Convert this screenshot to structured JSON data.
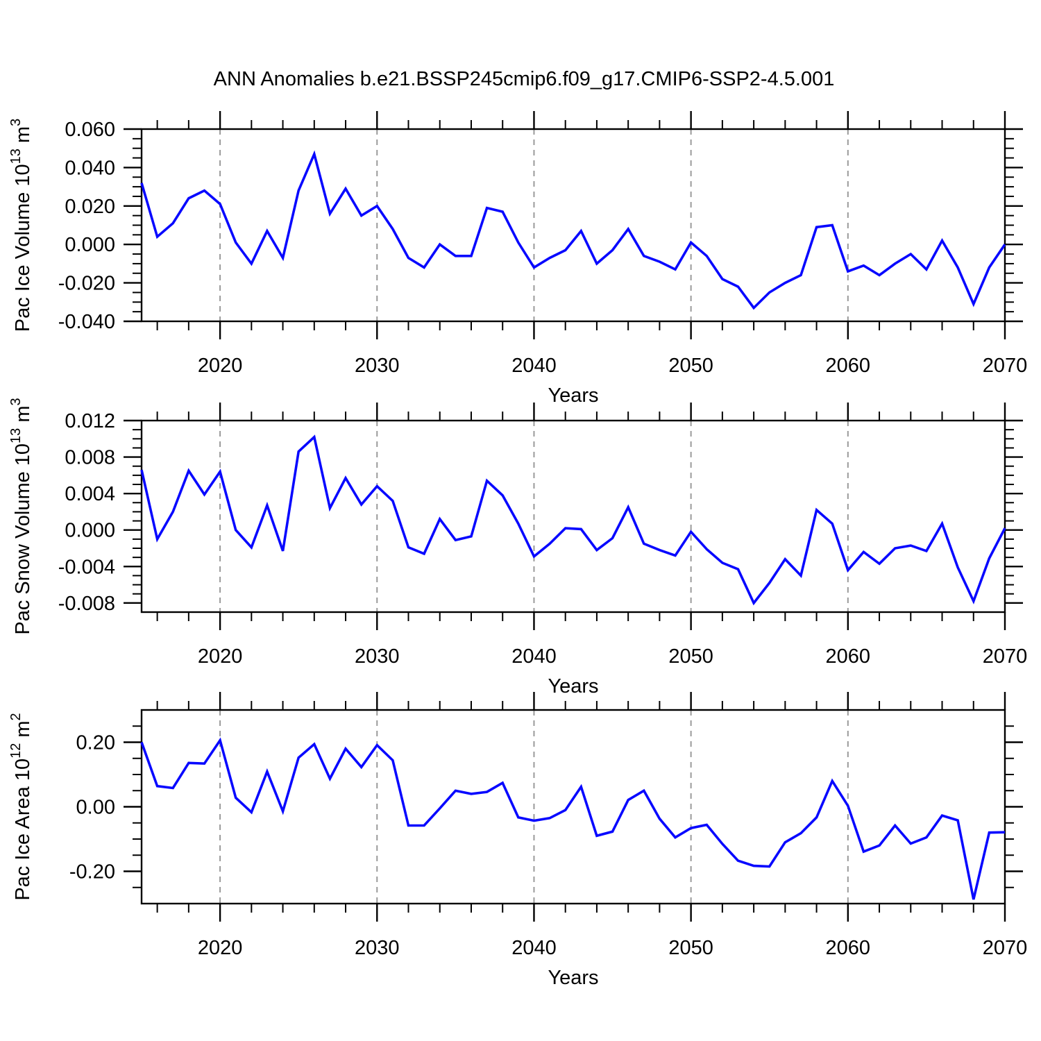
{
  "title": "ANN Anomalies b.e21.BSSP245cmip6.f09_g17.CMIP6-SSP2-4.5.001",
  "colors": {
    "line": "#0808ff",
    "axis": "#000000",
    "grid": "#9a9a9a",
    "text": "#000000",
    "background": "#ffffff"
  },
  "years": [
    2015,
    2016,
    2017,
    2018,
    2019,
    2020,
    2021,
    2022,
    2023,
    2024,
    2025,
    2026,
    2027,
    2028,
    2029,
    2030,
    2031,
    2032,
    2033,
    2034,
    2035,
    2036,
    2037,
    2038,
    2039,
    2040,
    2041,
    2042,
    2043,
    2044,
    2045,
    2046,
    2047,
    2048,
    2049,
    2050,
    2051,
    2052,
    2053,
    2054,
    2055,
    2056,
    2057,
    2058,
    2059,
    2060,
    2061,
    2062,
    2063,
    2064,
    2065,
    2066,
    2067,
    2068,
    2069,
    2070
  ],
  "x_axis": {
    "label": "Years",
    "range": [
      2015,
      2070
    ],
    "major_ticks": [
      2020,
      2030,
      2040,
      2050,
      2060,
      2070
    ],
    "major_tick_labels": [
      "2020",
      "2030",
      "2040",
      "2050",
      "2060",
      "2070"
    ],
    "minor_step": 2,
    "dashed_gridlines": [
      2020,
      2030,
      2040,
      2050,
      2060
    ]
  },
  "chart_data": [
    {
      "type": "line",
      "name": "pac-ice-volume",
      "ylabel": {
        "text": "Pac Ice Volume",
        "base": "10",
        "exp": "13",
        "unit": "m",
        "unit_exp": "3"
      },
      "ylim": [
        -0.04,
        0.06
      ],
      "yticks": [
        {
          "v": 0.06,
          "label": "0.060"
        },
        {
          "v": 0.04,
          "label": "0.040"
        },
        {
          "v": 0.02,
          "label": "0.020"
        },
        {
          "v": 0.0,
          "label": "0.000"
        },
        {
          "v": -0.02,
          "label": "-0.020"
        },
        {
          "v": -0.04,
          "label": "-0.040"
        }
      ],
      "y_minor_step": 0.005,
      "values": [
        0.032,
        0.004,
        0.011,
        0.024,
        0.028,
        0.021,
        0.001,
        -0.01,
        0.007,
        -0.007,
        0.028,
        0.047,
        0.016,
        0.029,
        0.015,
        0.02,
        0.008,
        -0.007,
        -0.012,
        0.0,
        -0.006,
        -0.006,
        0.019,
        0.017,
        0.001,
        -0.012,
        -0.007,
        -0.003,
        0.007,
        -0.01,
        -0.003,
        0.008,
        -0.006,
        -0.009,
        -0.013,
        0.001,
        -0.006,
        -0.018,
        -0.022,
        -0.033,
        -0.025,
        -0.02,
        -0.016,
        0.009,
        0.01,
        -0.014,
        -0.011,
        -0.016,
        -0.01,
        -0.005,
        -0.013,
        0.002,
        -0.012,
        -0.031,
        -0.012,
        0.0
      ]
    },
    {
      "type": "line",
      "name": "pac-snow-volume",
      "ylabel": {
        "text": "Pac Snow Volume",
        "base": "10",
        "exp": "13",
        "unit": "m",
        "unit_exp": "3"
      },
      "ylim": [
        -0.009,
        0.012
      ],
      "yticks": [
        {
          "v": 0.012,
          "label": "0.012"
        },
        {
          "v": 0.008,
          "label": "0.008"
        },
        {
          "v": 0.004,
          "label": "0.004"
        },
        {
          "v": 0.0,
          "label": "0.000"
        },
        {
          "v": -0.004,
          "label": "-0.004"
        },
        {
          "v": -0.008,
          "label": "-0.008"
        }
      ],
      "y_minor_step": 0.001,
      "values": [
        0.0066,
        -0.001,
        0.002,
        0.0065,
        0.0039,
        0.0064,
        0.0,
        -0.0019,
        0.0027,
        -0.0023,
        0.0086,
        0.0102,
        0.0024,
        0.0057,
        0.0028,
        0.0048,
        0.0032,
        -0.0019,
        -0.0026,
        0.0012,
        -0.0011,
        -0.0007,
        0.0054,
        0.0038,
        0.0007,
        -0.0029,
        -0.0015,
        0.0002,
        0.0001,
        -0.0022,
        -0.0009,
        0.0025,
        -0.0015,
        -0.0022,
        -0.0028,
        -0.0002,
        -0.0021,
        -0.0036,
        -0.0043,
        -0.008,
        -0.0058,
        -0.0032,
        -0.005,
        0.0022,
        0.0007,
        -0.0044,
        -0.0024,
        -0.0037,
        -0.002,
        -0.0017,
        -0.0023,
        0.0007,
        -0.0041,
        -0.0078,
        -0.0031,
        0.0002
      ]
    },
    {
      "type": "line",
      "name": "pac-ice-area",
      "ylabel": {
        "text": "Pac Ice Area",
        "base": "10",
        "exp": "12",
        "unit": "m",
        "unit_exp": "2"
      },
      "ylim": [
        -0.3,
        0.3
      ],
      "yticks": [
        {
          "v": 0.2,
          "label": "0.20"
        },
        {
          "v": 0.0,
          "label": "0.00"
        },
        {
          "v": -0.2,
          "label": "-0.20"
        }
      ],
      "y_minor_step": 0.05,
      "values": [
        0.2,
        0.064,
        0.058,
        0.136,
        0.134,
        0.206,
        0.028,
        -0.017,
        0.109,
        -0.014,
        0.152,
        0.194,
        0.087,
        0.18,
        0.123,
        0.191,
        0.144,
        -0.058,
        -0.058,
        -0.005,
        0.05,
        0.04,
        0.046,
        0.074,
        -0.033,
        -0.043,
        -0.035,
        -0.01,
        0.062,
        -0.09,
        -0.077,
        0.021,
        0.05,
        -0.037,
        -0.095,
        -0.066,
        -0.056,
        -0.115,
        -0.167,
        -0.183,
        -0.185,
        -0.11,
        -0.082,
        -0.033,
        0.08,
        0.003,
        -0.139,
        -0.12,
        -0.058,
        -0.114,
        -0.095,
        -0.027,
        -0.042,
        -0.287,
        -0.08,
        -0.079
      ]
    }
  ]
}
